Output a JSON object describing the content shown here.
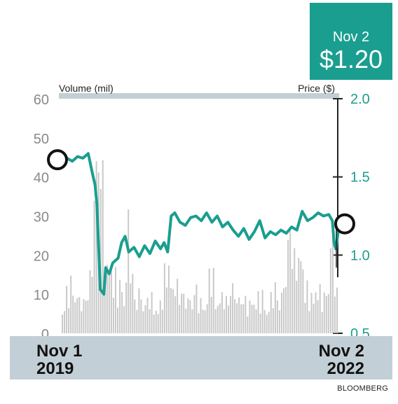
{
  "badge": {
    "date": "Nov 2",
    "price": "$1.20",
    "color": "#1a9e8f"
  },
  "source": "BLOOMBERG",
  "chart_data": {
    "type": "line+bar",
    "left_axis_label": "Volume (mil)",
    "right_axis_label": "Price ($)",
    "volume_ylim": [
      0,
      60
    ],
    "volume_ticks": [
      "60",
      "50",
      "40",
      "30",
      "20",
      "10",
      "0"
    ],
    "price_ylim": [
      0.5,
      2.0
    ],
    "price_ticks": [
      "2.0",
      "1.5",
      "1.0",
      "0.5"
    ],
    "x_start_label": [
      "Nov 1",
      "2019"
    ],
    "x_end_label": [
      "Nov 2",
      "2022"
    ],
    "x_range": [
      "2019-11-01",
      "2022-11-02"
    ],
    "start_marker": {
      "date": "2019-11-01",
      "price": 1.61
    },
    "end_marker": {
      "date": "2022-11-02",
      "price": 1.2
    },
    "colors": {
      "price_line": "#1a9e8f",
      "volume_bars": "#c9c9c9",
      "axis_band": "#c3cfd6",
      "left_ticks": "#8a8a8a"
    },
    "price_series": [
      [
        "2019-11-01",
        1.61
      ],
      [
        "2019-11-22",
        1.62
      ],
      [
        "2019-12-13",
        1.6
      ],
      [
        "2020-01-03",
        1.63
      ],
      [
        "2020-01-24",
        1.62
      ],
      [
        "2020-02-14",
        1.65
      ],
      [
        "2020-03-02",
        1.52
      ],
      [
        "2020-03-12",
        1.45
      ],
      [
        "2020-03-19",
        1.33
      ],
      [
        "2020-04-02",
        0.78
      ],
      [
        "2020-04-16",
        0.75
      ],
      [
        "2020-04-23",
        0.92
      ],
      [
        "2020-05-07",
        0.88
      ],
      [
        "2020-05-21",
        0.95
      ],
      [
        "2020-06-11",
        0.98
      ],
      [
        "2020-06-25",
        1.08
      ],
      [
        "2020-07-09",
        1.12
      ],
      [
        "2020-07-23",
        1.02
      ],
      [
        "2020-08-13",
        1.05
      ],
      [
        "2020-09-03",
        0.99
      ],
      [
        "2020-09-24",
        1.06
      ],
      [
        "2020-10-15",
        1.01
      ],
      [
        "2020-11-05",
        1.09
      ],
      [
        "2020-11-26",
        1.04
      ],
      [
        "2020-12-10",
        1.08
      ],
      [
        "2020-12-24",
        1.02
      ],
      [
        "2021-01-07",
        1.25
      ],
      [
        "2021-01-21",
        1.27
      ],
      [
        "2021-02-11",
        1.21
      ],
      [
        "2021-03-04",
        1.19
      ],
      [
        "2021-03-25",
        1.24
      ],
      [
        "2021-04-15",
        1.25
      ],
      [
        "2021-05-06",
        1.22
      ],
      [
        "2021-05-27",
        1.27
      ],
      [
        "2021-06-17",
        1.21
      ],
      [
        "2021-07-08",
        1.25
      ],
      [
        "2021-07-29",
        1.18
      ],
      [
        "2021-08-19",
        1.21
      ],
      [
        "2021-09-09",
        1.16
      ],
      [
        "2021-09-30",
        1.12
      ],
      [
        "2021-10-21",
        1.17
      ],
      [
        "2021-11-11",
        1.1
      ],
      [
        "2021-12-02",
        1.15
      ],
      [
        "2021-12-23",
        1.22
      ],
      [
        "2022-01-13",
        1.11
      ],
      [
        "2022-02-03",
        1.15
      ],
      [
        "2022-02-24",
        1.13
      ],
      [
        "2022-03-17",
        1.16
      ],
      [
        "2022-04-07",
        1.14
      ],
      [
        "2022-04-28",
        1.18
      ],
      [
        "2022-05-19",
        1.16
      ],
      [
        "2022-06-09",
        1.28
      ],
      [
        "2022-06-30",
        1.22
      ],
      [
        "2022-07-21",
        1.24
      ],
      [
        "2022-08-11",
        1.27
      ],
      [
        "2022-09-01",
        1.25
      ],
      [
        "2022-09-22",
        1.26
      ],
      [
        "2022-10-06",
        1.22
      ],
      [
        "2022-10-13",
        1.08
      ],
      [
        "2022-10-20",
        1.04
      ],
      [
        "2022-10-27",
        1.12
      ],
      [
        "2022-11-02",
        1.2
      ]
    ],
    "volume_series": [
      [
        "2019-11-01",
        8
      ],
      [
        "2019-11-22",
        10
      ],
      [
        "2019-12-13",
        12
      ],
      [
        "2020-01-03",
        9
      ],
      [
        "2020-01-24",
        7
      ],
      [
        "2020-02-14",
        11
      ],
      [
        "2020-03-02",
        18
      ],
      [
        "2020-03-12",
        52
      ],
      [
        "2020-03-19",
        40
      ],
      [
        "2020-04-02",
        49
      ],
      [
        "2020-04-16",
        22
      ],
      [
        "2020-04-23",
        12
      ],
      [
        "2020-05-07",
        24
      ],
      [
        "2020-05-21",
        15
      ],
      [
        "2020-06-11",
        10
      ],
      [
        "2020-06-25",
        13
      ],
      [
        "2020-07-09",
        9
      ],
      [
        "2020-07-23",
        28
      ],
      [
        "2020-08-13",
        8
      ],
      [
        "2020-09-03",
        10
      ],
      [
        "2020-09-24",
        7
      ],
      [
        "2020-10-15",
        9
      ],
      [
        "2020-11-05",
        6
      ],
      [
        "2020-11-26",
        8
      ],
      [
        "2020-12-10",
        11
      ],
      [
        "2020-12-24",
        19
      ],
      [
        "2021-01-07",
        14
      ],
      [
        "2021-01-21",
        12
      ],
      [
        "2021-02-11",
        10
      ],
      [
        "2021-03-04",
        9
      ],
      [
        "2021-03-25",
        8
      ],
      [
        "2021-04-15",
        11
      ],
      [
        "2021-05-06",
        7
      ],
      [
        "2021-05-27",
        9
      ],
      [
        "2021-06-17",
        16
      ],
      [
        "2021-07-08",
        8
      ],
      [
        "2021-07-29",
        10
      ],
      [
        "2021-08-19",
        7
      ],
      [
        "2021-09-09",
        12
      ],
      [
        "2021-09-30",
        8
      ],
      [
        "2021-10-21",
        9
      ],
      [
        "2021-11-11",
        6
      ],
      [
        "2021-12-02",
        10
      ],
      [
        "2021-12-23",
        8
      ],
      [
        "2022-01-13",
        9
      ],
      [
        "2022-02-03",
        7
      ],
      [
        "2022-02-24",
        11
      ],
      [
        "2022-03-17",
        8
      ],
      [
        "2022-04-07",
        12
      ],
      [
        "2022-04-28",
        27
      ],
      [
        "2022-05-19",
        15
      ],
      [
        "2022-06-09",
        23
      ],
      [
        "2022-06-30",
        10
      ],
      [
        "2022-07-21",
        9
      ],
      [
        "2022-08-11",
        13
      ],
      [
        "2022-09-01",
        8
      ],
      [
        "2022-09-22",
        10
      ],
      [
        "2022-10-06",
        20
      ],
      [
        "2022-10-13",
        28
      ],
      [
        "2022-10-20",
        22
      ],
      [
        "2022-10-27",
        12
      ],
      [
        "2022-11-02",
        11
      ]
    ]
  }
}
